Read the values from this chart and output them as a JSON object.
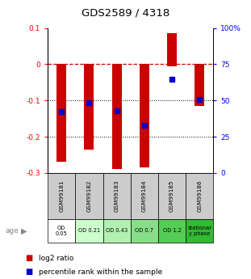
{
  "title": "GDS2589 / 4318",
  "samples": [
    "GSM99181",
    "GSM99182",
    "GSM99183",
    "GSM99184",
    "GSM99185",
    "GSM99186"
  ],
  "bar_tops": [
    0.0,
    0.0,
    0.0,
    0.0,
    0.085,
    0.0
  ],
  "bar_bottoms": [
    -0.27,
    -0.235,
    -0.29,
    -0.285,
    -0.005,
    -0.115
  ],
  "percentile_y": [
    -0.13,
    -0.107,
    -0.128,
    -0.168,
    -0.042,
    -0.098
  ],
  "ylim_left": [
    -0.3,
    0.1
  ],
  "ylim_right": [
    0,
    100
  ],
  "yticks_left": [
    -0.3,
    -0.2,
    -0.1,
    0.0,
    0.1
  ],
  "ytick_labels_left": [
    "-0.3",
    "-0.2",
    "-0.1",
    "0",
    "0.1"
  ],
  "yticks_right": [
    0,
    25,
    50,
    75,
    100
  ],
  "ytick_labels_right": [
    "0",
    "25",
    "50",
    "75",
    "100%"
  ],
  "bar_color": "#cc0000",
  "dot_color": "#0000cc",
  "zeroline_color": "#cc0000",
  "age_labels": [
    "OD\n0.05",
    "OD 0.21",
    "OD 0.43",
    "OD 0.7",
    "OD 1.2",
    "stationar\ny phase"
  ],
  "age_bg_colors": [
    "#ffffff",
    "#ccffcc",
    "#b2f0b2",
    "#88dd88",
    "#55cc55",
    "#33bb33"
  ],
  "sample_bg_color": "#cccccc",
  "legend_log2_color": "#cc0000",
  "legend_pct_color": "#0000cc"
}
